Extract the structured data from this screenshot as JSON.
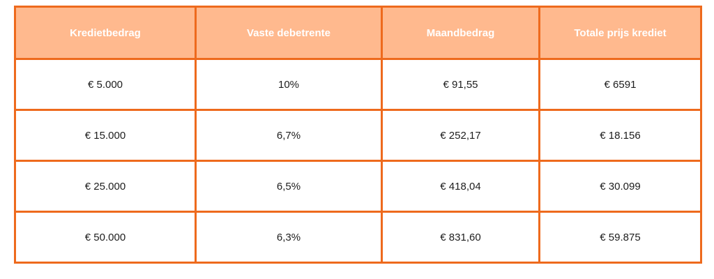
{
  "table": {
    "headers": [
      "Kredietbedrag",
      "Vaste debetrente",
      "Maandbedrag",
      "Totale prijs krediet"
    ],
    "rows": [
      [
        "€ 5.000",
        "10%",
        "€ 91,55",
        "€ 6591"
      ],
      [
        "€ 15.000",
        "6,7%",
        "€ 252,17",
        "€ 18.156"
      ],
      [
        "€ 25.000",
        "6,5%",
        "€ 418,04",
        "€ 30.099"
      ],
      [
        "€ 50.000",
        "6,3%",
        "€ 831,60",
        "€ 59.875"
      ]
    ]
  },
  "colors": {
    "border": "#ee6a1d",
    "header_background": "#ffb98e",
    "header_text": "#ffffff",
    "cell_text": "#1d1d1d"
  }
}
